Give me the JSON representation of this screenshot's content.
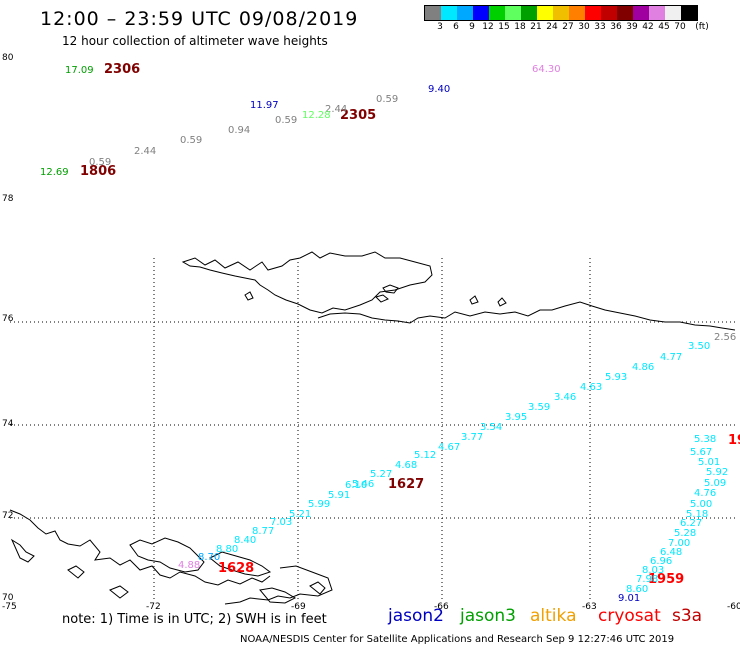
{
  "header": {
    "title": "12:00 – 23:59 UTC 09/08/2019",
    "subtitle": "12 hour collection of altimeter wave heights"
  },
  "legend": {
    "unit": "(ft)",
    "colors": [
      "#808080",
      "#00e8ff",
      "#00a8ff",
      "#0000ff",
      "#00d000",
      "#60ff60",
      "#00a000",
      "#ffff00",
      "#f0c000",
      "#ff8000",
      "#ff0000",
      "#c00000",
      "#800000",
      "#a000a0",
      "#e080e0",
      "#f0f0f0",
      "#000000"
    ],
    "labels": [
      "3",
      "6",
      "9",
      "12",
      "15",
      "18",
      "21",
      "24",
      "27",
      "30",
      "33",
      "36",
      "39",
      "42",
      "45",
      "70"
    ]
  },
  "map": {
    "lat_labels": [
      "80",
      "78",
      "76",
      "74",
      "72",
      "70"
    ],
    "lon_labels": [
      "-75",
      "-72",
      "-69",
      "-66",
      "-63",
      "-60"
    ],
    "track_times": [
      {
        "text": "2306",
        "color": "#800000"
      },
      {
        "text": "2305",
        "color": "#800000"
      },
      {
        "text": "1806",
        "color": "#800000"
      },
      {
        "text": "1627",
        "color": "#800000"
      },
      {
        "text": "1628",
        "color": "#ff0000"
      },
      {
        "text": "1959",
        "color": "#ff0000"
      },
      {
        "text": "19",
        "color": "#ff0000"
      }
    ],
    "wave_heights": [
      {
        "text": "17.09",
        "color": "#00a000"
      },
      {
        "text": "64.30",
        "color": "#e080e0"
      },
      {
        "text": "9.40",
        "color": "#0000c0"
      },
      {
        "text": "11.97",
        "color": "#0000c0"
      },
      {
        "text": "2.44",
        "color": "#808080"
      },
      {
        "text": "0.59",
        "color": "#808080"
      },
      {
        "text": "12.28",
        "color": "#60ff60"
      },
      {
        "text": "0.59",
        "color": "#808080"
      },
      {
        "text": "0.94",
        "color": "#808080"
      },
      {
        "text": "0.59",
        "color": "#808080"
      },
      {
        "text": "2.44",
        "color": "#808080"
      },
      {
        "text": "0.59",
        "color": "#808080"
      },
      {
        "text": "12.69",
        "color": "#00a000"
      },
      {
        "text": "2.56",
        "color": "#808080"
      },
      {
        "text": "3.50",
        "color": "#00e8ff"
      },
      {
        "text": "4.77",
        "color": "#00e8ff"
      },
      {
        "text": "4.86",
        "color": "#00e8ff"
      },
      {
        "text": "5.93",
        "color": "#00e8ff"
      },
      {
        "text": "4.63",
        "color": "#00e8ff"
      },
      {
        "text": "3.46",
        "color": "#00e8ff"
      },
      {
        "text": "3.59",
        "color": "#00e8ff"
      },
      {
        "text": "3.95",
        "color": "#00e8ff"
      },
      {
        "text": "3.54",
        "color": "#00e8ff"
      },
      {
        "text": "3.77",
        "color": "#00e8ff"
      },
      {
        "text": "4.67",
        "color": "#00e8ff"
      },
      {
        "text": "5.12",
        "color": "#00e8ff"
      },
      {
        "text": "4.68",
        "color": "#00e8ff"
      },
      {
        "text": "5.27",
        "color": "#00e8ff"
      },
      {
        "text": "5.46",
        "color": "#00e8ff"
      },
      {
        "text": "6.10",
        "color": "#00e8ff"
      },
      {
        "text": "5.91",
        "color": "#00e8ff"
      },
      {
        "text": "5.99",
        "color": "#00e8ff"
      },
      {
        "text": "5.21",
        "color": "#00e8ff"
      },
      {
        "text": "7.03",
        "color": "#00e8ff"
      },
      {
        "text": "8.77",
        "color": "#00e8ff"
      },
      {
        "text": "8.40",
        "color": "#00e8ff"
      },
      {
        "text": "8.80",
        "color": "#00e8ff"
      },
      {
        "text": "8.70",
        "color": "#00a8ff"
      },
      {
        "text": "4.88",
        "color": "#e080e0"
      },
      {
        "text": "5.38",
        "color": "#00e8ff"
      },
      {
        "text": "5.67",
        "color": "#00e8ff"
      },
      {
        "text": "5.01",
        "color": "#00e8ff"
      },
      {
        "text": "5.92",
        "color": "#00e8ff"
      },
      {
        "text": "5.09",
        "color": "#00e8ff"
      },
      {
        "text": "4.76",
        "color": "#00e8ff"
      },
      {
        "text": "5.00",
        "color": "#00e8ff"
      },
      {
        "text": "5.18",
        "color": "#00e8ff"
      },
      {
        "text": "6.27",
        "color": "#00e8ff"
      },
      {
        "text": "5.28",
        "color": "#00e8ff"
      },
      {
        "text": "7.00",
        "color": "#00e8ff"
      },
      {
        "text": "6.48",
        "color": "#00e8ff"
      },
      {
        "text": "6.96",
        "color": "#00e8ff"
      },
      {
        "text": "8.03",
        "color": "#00e8ff"
      },
      {
        "text": "7.98",
        "color": "#00e8ff"
      },
      {
        "text": "8.60",
        "color": "#00e8ff"
      },
      {
        "text": "9.01",
        "color": "#0000c0"
      }
    ]
  },
  "note": "note: 1) Time is in UTC; 2) SWH is in feet",
  "satellites": [
    {
      "name": "jason2",
      "color": "#0000c0"
    },
    {
      "name": "jason3",
      "color": "#00a000"
    },
    {
      "name": "altika",
      "color": "#f0a000"
    },
    {
      "name": "cryosat",
      "color": "#ff0000"
    },
    {
      "name": "s3a",
      "color": "#c00000"
    }
  ],
  "footer": "NOAA/NESDIS Center for Satellite Applications and Research   Sep  9 12:27:46 UTC 2019"
}
